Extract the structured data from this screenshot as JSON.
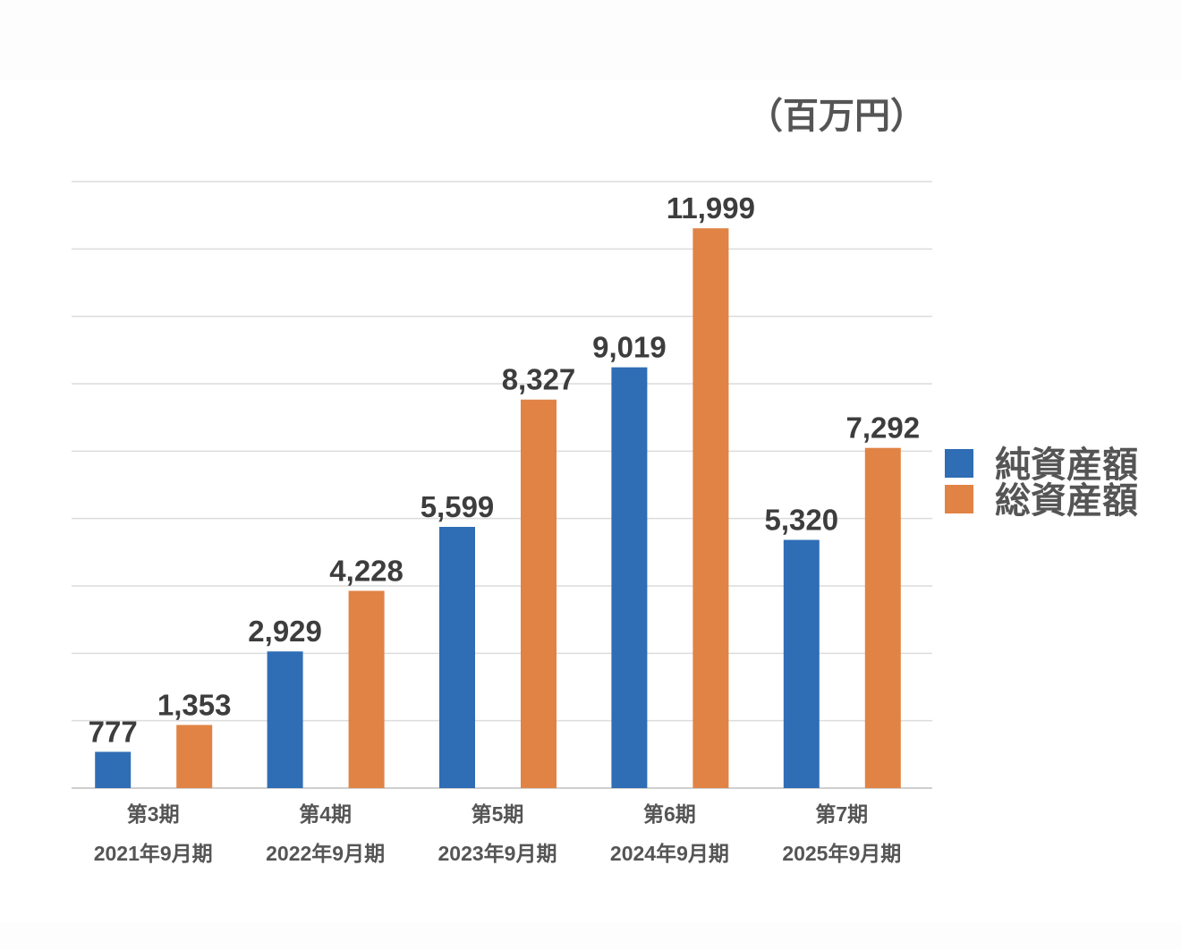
{
  "chart_data": {
    "type": "bar",
    "title": "",
    "unit_label": "（百万円）",
    "categories": [
      {
        "period": "第3期",
        "date": "2021年9月期"
      },
      {
        "period": "第4期",
        "date": "2022年9月期"
      },
      {
        "period": "第5期",
        "date": "2023年9月期"
      },
      {
        "period": "第6期",
        "date": "2024年9月期"
      },
      {
        "period": "第7期",
        "date": "2025年9月期"
      }
    ],
    "series": [
      {
        "name": "純資産額",
        "color": "#2f6db5",
        "values": [
          777,
          2929,
          5599,
          9019,
          5320
        ],
        "labels": [
          "777",
          "2,929",
          "5,599",
          "9,019",
          "5,320"
        ]
      },
      {
        "name": "総資産額",
        "color": "#e08345",
        "values": [
          1353,
          4228,
          8327,
          11999,
          7292
        ],
        "labels": [
          "1,353",
          "4,228",
          "8,327",
          "11,999",
          "7,292"
        ]
      }
    ],
    "xlabel": "",
    "ylabel": "",
    "ylim": [
      0,
      13000
    ],
    "gridlines": 9,
    "grid": true,
    "legend": "right"
  }
}
